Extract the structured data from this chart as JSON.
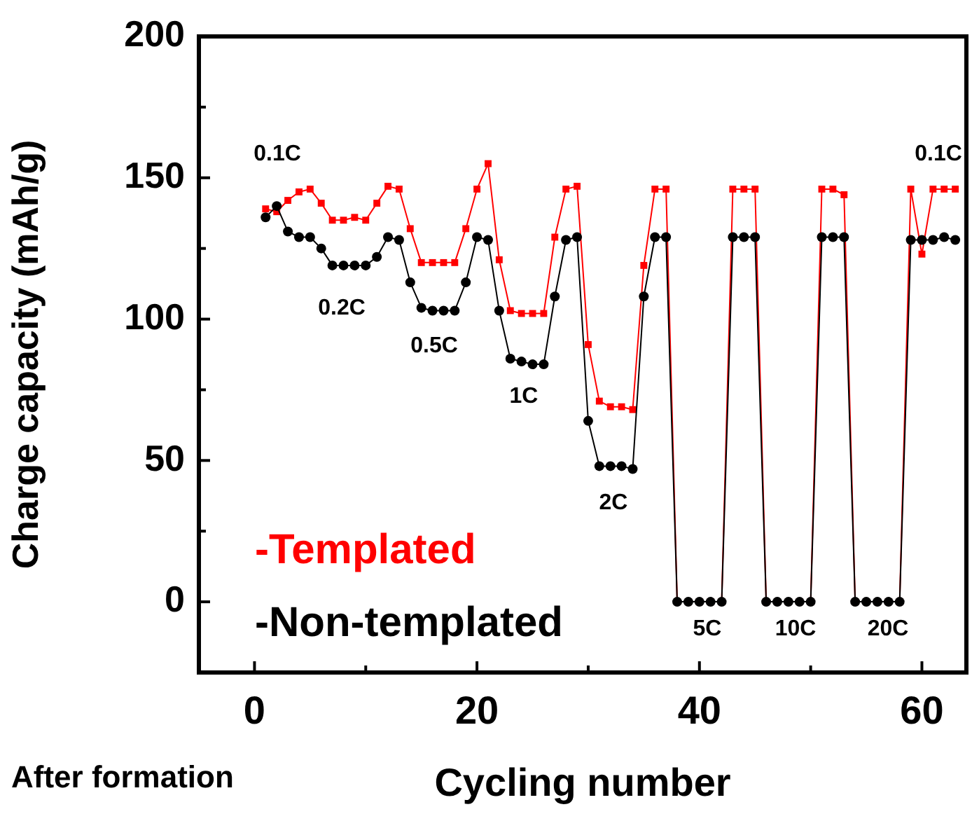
{
  "chart_data": {
    "type": "line",
    "xlabel": "Cycling number",
    "ylabel": "Charge capacity (mAh/g)",
    "x": [
      1,
      2,
      3,
      4,
      5,
      6,
      7,
      8,
      9,
      10,
      11,
      12,
      13,
      14,
      15,
      16,
      17,
      18,
      19,
      20,
      21,
      22,
      23,
      24,
      25,
      26,
      27,
      28,
      29,
      30,
      31,
      32,
      33,
      34,
      35,
      36,
      37,
      38,
      39,
      40,
      41,
      42,
      43,
      44,
      45,
      46,
      47,
      48,
      49,
      50,
      51,
      52,
      53,
      54,
      55,
      56,
      57,
      58,
      59,
      60,
      61,
      62,
      63
    ],
    "series": [
      {
        "name": "-Templated",
        "color": "#ff0000",
        "marker": "square",
        "values": [
          139,
          138,
          142,
          145,
          146,
          141,
          135,
          135,
          136,
          135,
          141,
          147,
          146,
          132,
          120,
          120,
          120,
          120,
          132,
          146,
          155,
          121,
          103,
          102,
          102,
          102,
          129,
          146,
          147,
          91,
          71,
          69,
          69,
          68,
          119,
          146,
          146,
          0,
          0,
          0,
          0,
          0,
          146,
          146,
          146,
          0,
          0,
          0,
          0,
          0,
          146,
          146,
          144,
          0,
          0,
          0,
          0,
          0,
          146,
          123,
          146,
          146,
          146
        ]
      },
      {
        "name": "-Non-templated",
        "color": "#000000",
        "marker": "circle",
        "values": [
          136,
          140,
          131,
          129,
          129,
          125,
          119,
          119,
          119,
          119,
          122,
          129,
          128,
          113,
          104,
          103,
          103,
          103,
          113,
          129,
          128,
          103,
          86,
          85,
          84,
          84,
          108,
          128,
          129,
          64,
          48,
          48,
          48,
          47,
          108,
          129,
          129,
          0,
          0,
          0,
          0,
          0,
          129,
          129,
          129,
          0,
          0,
          0,
          0,
          0,
          129,
          129,
          129,
          0,
          0,
          0,
          0,
          0,
          128,
          128,
          128,
          129,
          128
        ]
      }
    ],
    "xlim": [
      -5,
      64
    ],
    "xticks": [
      0,
      {
        "value": 10,
        "label": null
      },
      20,
      {
        "value": 30,
        "label": null
      },
      40,
      {
        "value": 50,
        "label": null
      },
      60
    ],
    "ylim": [
      -25,
      200
    ],
    "yticks": [
      {
        "value": -25,
        "label": null
      },
      0,
      {
        "value": 25,
        "label": null
      },
      50,
      {
        "value": 75,
        "label": null
      },
      100,
      {
        "value": 125,
        "label": null
      },
      150,
      {
        "value": 175,
        "label": null
      },
      200
    ],
    "grid": false,
    "legend": "bottom left",
    "line_style": "solid",
    "annotations": [
      "0.1C",
      "0.2C",
      "0.5C",
      "1C",
      "2C",
      "5C",
      "10C",
      "20C",
      "0.1C",
      "After formation"
    ]
  }
}
